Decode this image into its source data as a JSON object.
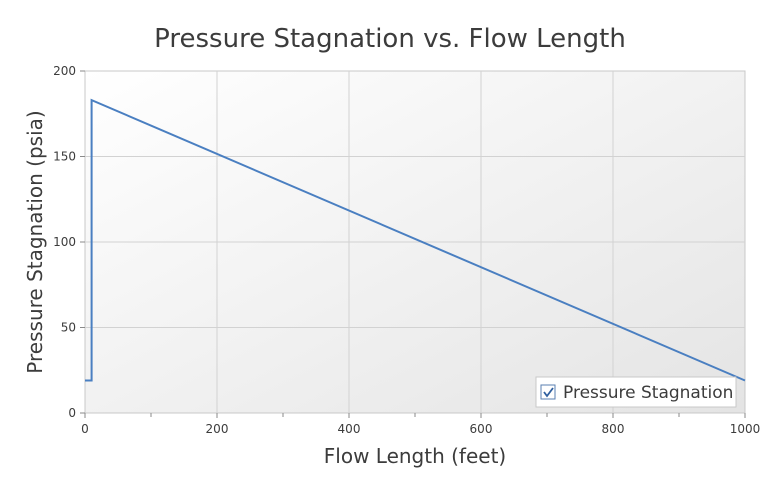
{
  "chart_data": {
    "type": "line",
    "title": "Pressure Stagnation vs. Flow Length",
    "xlabel": "Flow Length (feet)",
    "ylabel": "Pressure Stagnation (psia)",
    "xlim": [
      0,
      1000
    ],
    "ylim": [
      0,
      200
    ],
    "x_ticks": [
      0,
      200,
      400,
      600,
      800,
      1000
    ],
    "y_ticks": [
      0,
      50,
      100,
      150,
      200
    ],
    "grid": true,
    "legend_position": "bottom-right",
    "series": [
      {
        "name": "Pressure Stagnation",
        "color": "#4a7fc1",
        "x": [
          0,
          10,
          10,
          1000
        ],
        "y": [
          19,
          19,
          183,
          19
        ]
      }
    ],
    "legend": {
      "checked": true
    }
  }
}
